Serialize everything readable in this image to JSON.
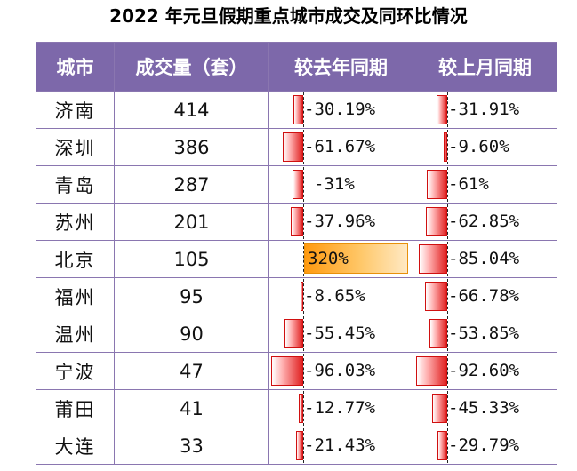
{
  "title": "2022 年元旦假期重点城市成交及同环比情况",
  "headers": [
    "城市",
    "成交量（套）",
    "较去年同期",
    "较上月同期"
  ],
  "colors": {
    "header_bg": "#7d68aa",
    "negative_bar": "#e02020",
    "positive_bar": "#ff9a10"
  },
  "rows": [
    {
      "city": "济南",
      "volume": "414",
      "yoy": "-30.19%",
      "mom": "-31.91%"
    },
    {
      "city": "深圳",
      "volume": "386",
      "yoy": "-61.67%",
      "mom": "-9.60%"
    },
    {
      "city": "青岛",
      "volume": "287",
      "yoy": "-31%",
      "mom": "-61%"
    },
    {
      "city": "苏州",
      "volume": "201",
      "yoy": "-37.96%",
      "mom": "-62.85%"
    },
    {
      "city": "北京",
      "volume": "105",
      "yoy": "320%",
      "mom": "-85.04%"
    },
    {
      "city": "福州",
      "volume": "95",
      "yoy": "-8.65%",
      "mom": "-66.78%"
    },
    {
      "city": "温州",
      "volume": "90",
      "yoy": "-55.45%",
      "mom": "-53.85%"
    },
    {
      "city": "宁波",
      "volume": "47",
      "yoy": "-96.03%",
      "mom": "-92.60%"
    },
    {
      "city": "莆田",
      "volume": "41",
      "yoy": "-12.77%",
      "mom": "-45.33%"
    },
    {
      "city": "大连",
      "volume": "33",
      "yoy": "-21.43%",
      "mom": "-29.79%"
    }
  ],
  "bar_values": {
    "yoy": [
      -30.19,
      -61.67,
      -31,
      -37.96,
      320,
      -8.65,
      -55.45,
      -96.03,
      -12.77,
      -21.43
    ],
    "mom": [
      -31.91,
      -9.6,
      -61,
      -62.85,
      -85.04,
      -66.78,
      -53.85,
      -92.6,
      -45.33,
      -29.79
    ]
  }
}
